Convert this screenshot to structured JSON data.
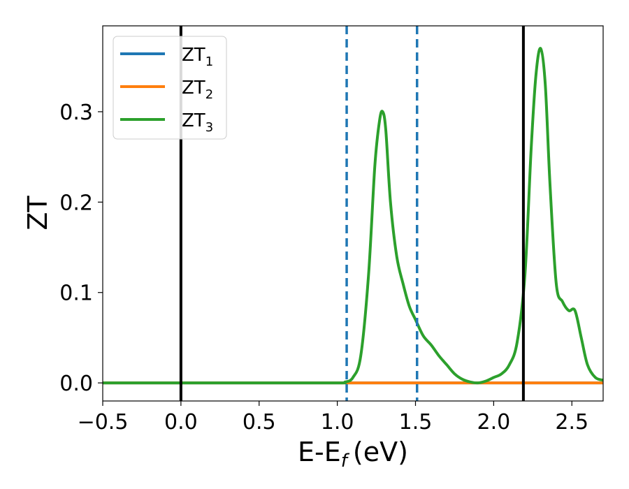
{
  "chart_data": {
    "type": "line",
    "xlabel": "E-E",
    "xlabel_sub": "f",
    "xlabel_unit": "(eV)",
    "ylabel": "ZT",
    "xlim": [
      -0.5,
      2.7
    ],
    "ylim": [
      -0.02,
      0.395
    ],
    "xticks": [
      -0.5,
      0.0,
      0.5,
      1.0,
      1.5,
      2.0,
      2.5
    ],
    "xtick_labels": [
      "−0.5",
      "0.0",
      "0.5",
      "1.0",
      "1.5",
      "2.0",
      "2.5"
    ],
    "yticks": [
      0.0,
      0.1,
      0.2,
      0.3
    ],
    "ytick_labels": [
      "0.0",
      "0.1",
      "0.2",
      "0.3"
    ],
    "grid": false,
    "legend_position": "top-left",
    "series": [
      {
        "base": "ZT",
        "sub": "1",
        "color": "#1f77b4",
        "x": [
          -0.5,
          2.7
        ],
        "y": [
          0.0,
          0.0
        ]
      },
      {
        "base": "ZT",
        "sub": "2",
        "color": "#ff7f0e",
        "x": [
          -0.5,
          2.7
        ],
        "y": [
          0.0,
          0.0
        ]
      },
      {
        "base": "ZT",
        "sub": "3",
        "color": "#2ca02c",
        "x": [
          -0.5,
          0.5,
          1.0,
          1.05,
          1.1,
          1.15,
          1.2,
          1.24,
          1.27,
          1.29,
          1.31,
          1.34,
          1.38,
          1.42,
          1.46,
          1.5,
          1.55,
          1.6,
          1.65,
          1.7,
          1.75,
          1.8,
          1.85,
          1.9,
          1.95,
          2.0,
          2.05,
          2.1,
          2.15,
          2.2,
          2.24,
          2.27,
          2.3,
          2.33,
          2.36,
          2.4,
          2.44,
          2.48,
          2.52,
          2.56,
          2.6,
          2.65,
          2.7
        ],
        "y": [
          0.0,
          0.0,
          0.0,
          0.001,
          0.006,
          0.03,
          0.12,
          0.24,
          0.29,
          0.3,
          0.28,
          0.2,
          0.14,
          0.11,
          0.085,
          0.07,
          0.052,
          0.042,
          0.03,
          0.02,
          0.01,
          0.004,
          0.001,
          0.0,
          0.002,
          0.006,
          0.01,
          0.02,
          0.045,
          0.12,
          0.26,
          0.34,
          0.37,
          0.33,
          0.22,
          0.11,
          0.09,
          0.08,
          0.08,
          0.05,
          0.02,
          0.006,
          0.003
        ]
      }
    ],
    "vlines": [
      {
        "x": 0.0,
        "style": "solid",
        "color": "#000000"
      },
      {
        "x": 1.06,
        "style": "dashed",
        "color": "#1f77b4"
      },
      {
        "x": 1.51,
        "style": "dashed",
        "color": "#1f77b4"
      },
      {
        "x": 2.19,
        "style": "solid",
        "color": "#000000"
      }
    ]
  }
}
